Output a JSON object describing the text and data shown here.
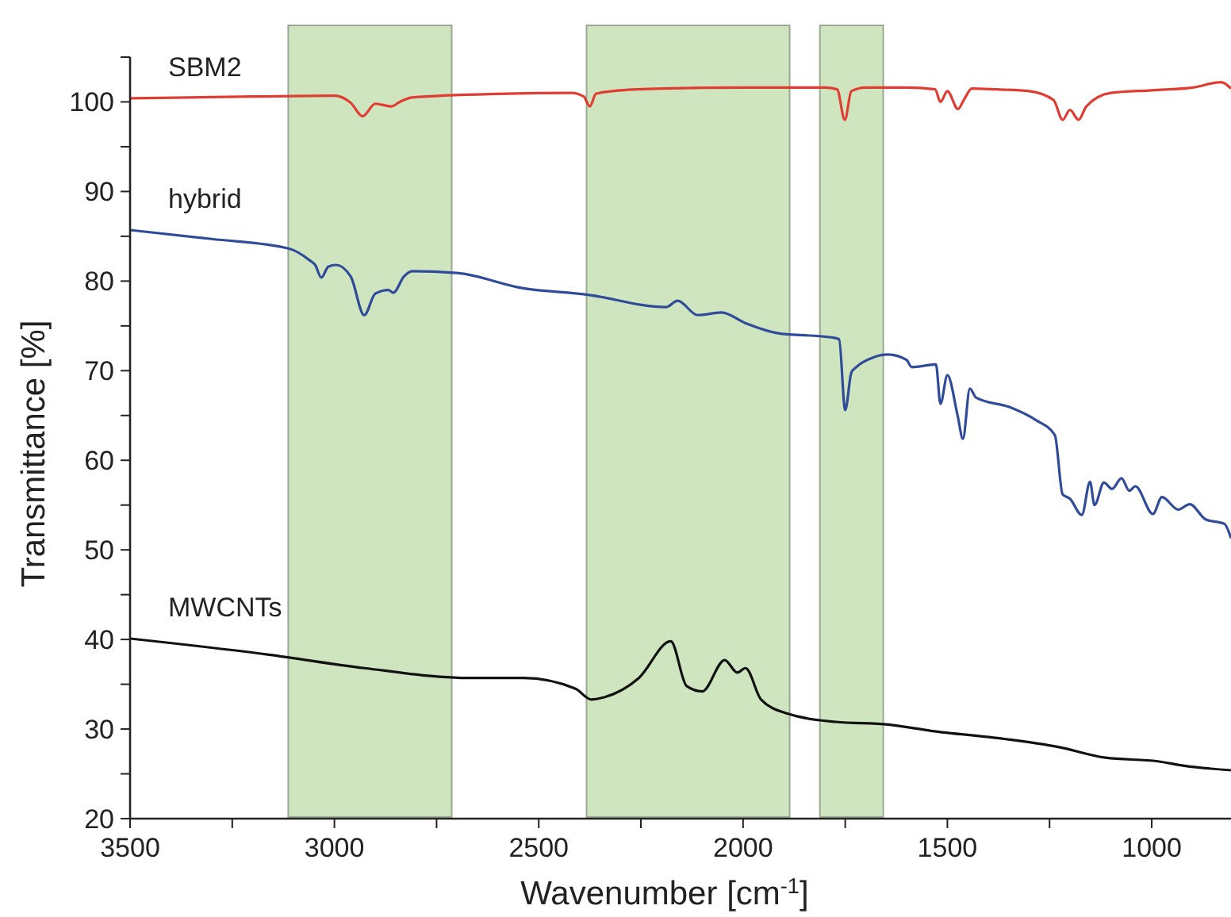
{
  "chart_data": {
    "type": "line",
    "xlabel": "Wavenumber [cm$^{-1}$]",
    "ylabel": "Transmittance [%]",
    "xlim": [
      3500,
      806
    ],
    "ylim": [
      20,
      105
    ],
    "xticks": [
      3500,
      {
        "value": 3250,
        "label": null
      },
      3000,
      {
        "value": 2750,
        "label": null
      },
      2500,
      {
        "value": 2250,
        "label": null
      },
      2000,
      {
        "value": 1750,
        "label": null
      },
      1500,
      {
        "value": 1250,
        "label": null
      },
      1000
    ],
    "yticks": [
      20,
      {
        "value": 25,
        "label": null
      },
      30,
      {
        "value": 35,
        "label": null
      },
      40,
      {
        "value": 45,
        "label": null
      },
      50,
      {
        "value": 55,
        "label": null
      },
      60,
      {
        "value": 65,
        "label": null
      },
      70,
      {
        "value": 75,
        "label": null
      },
      80,
      {
        "value": 85,
        "label": null
      },
      90,
      {
        "value": 95,
        "label": null
      },
      100,
      {
        "value": 105,
        "label": null
      }
    ],
    "grid": false,
    "line_style": "solid",
    "marker": "none",
    "bands": [
      {
        "axis": "x",
        "from": 3113,
        "to": 2713,
        "color": "#c5e0b4"
      },
      {
        "axis": "x",
        "from": 2383,
        "to": 1886,
        "color": "#c5e0b4"
      },
      {
        "axis": "x",
        "from": 1812,
        "to": 1657,
        "color": "#c5e0b4"
      }
    ],
    "series": [
      {
        "name": "SBM2",
        "color": "#e03c31",
        "x": [
          3500,
          3200,
          3000,
          2960,
          2931,
          2900,
          2861,
          2840,
          2810,
          2600,
          2420,
          2390,
          2375,
          2360,
          2300,
          2200,
          2000,
          1800,
          1770,
          1751,
          1735,
          1700,
          1600,
          1530,
          1517,
          1500,
          1474,
          1460,
          1440,
          1380,
          1300,
          1240,
          1218,
          1200,
          1179,
          1160,
          1100,
          1000,
          900,
          830,
          806
        ],
        "values": [
          100.4,
          100.6,
          100.7,
          99.9,
          98.4,
          99.8,
          99.5,
          100,
          100.5,
          100.9,
          101,
          100.6,
          99.5,
          100.9,
          101.3,
          101.5,
          101.6,
          101.6,
          101.4,
          98,
          101.2,
          101.6,
          101.6,
          101.4,
          100,
          101.2,
          99.2,
          100.2,
          101.5,
          101.4,
          101.2,
          100.2,
          98,
          99.1,
          98,
          99.5,
          101,
          101.3,
          101.6,
          102.2,
          101.5
        ]
      },
      {
        "name": "hybrid",
        "color": "#2f4b9a",
        "x": [
          3500,
          3300,
          3109,
          3060,
          3047,
          3032,
          3015,
          2996,
          2960,
          2927,
          2900,
          2868,
          2856,
          2830,
          2810,
          2700,
          2538,
          2383,
          2189,
          2160,
          2111,
          2053,
          1994,
          1917,
          1781,
          1765,
          1750,
          1735,
          1723,
          1680,
          1645,
          1600,
          1587,
          1528,
          1517,
          1500,
          1475,
          1462,
          1445,
          1430,
          1346,
          1284,
          1237,
          1218,
          1200,
          1171,
          1151,
          1140,
          1117,
          1097,
          1074,
          1055,
          1040,
          997,
          975,
          935,
          907,
          868,
          822,
          806
        ],
        "values": [
          85.7,
          84.7,
          83.6,
          82.3,
          81.8,
          80.4,
          81.6,
          81.8,
          80.5,
          76.2,
          78.6,
          79,
          78.7,
          80.5,
          81.1,
          80.9,
          79.2,
          78.5,
          77.1,
          77.8,
          76.2,
          76.5,
          75.3,
          74.2,
          73.7,
          73.5,
          65.6,
          69.8,
          70.4,
          71.5,
          71.8,
          71.2,
          70.4,
          70.7,
          66.3,
          69.5,
          65,
          62.4,
          68,
          67,
          65.9,
          64.5,
          62.8,
          56.2,
          55.7,
          53.9,
          57.6,
          55,
          57.5,
          56.8,
          58,
          56.6,
          57.1,
          54,
          55.9,
          54.5,
          55.1,
          53.4,
          52.9,
          51.3
        ]
      },
      {
        "name": "MWCNTs",
        "color": "#111111",
        "x": [
          3500,
          3160,
          2927,
          2667,
          2538,
          2410,
          2372,
          2344,
          2255,
          2177,
          2138,
          2100,
          2045,
          2014,
          1994,
          1956,
          1890,
          1773,
          1645,
          1540,
          1361,
          1229,
          1113,
          985,
          920,
          806
        ],
        "values": [
          40.1,
          38.3,
          36.8,
          35.7,
          35.7,
          34.5,
          33.3,
          33.5,
          35.7,
          39.8,
          34.8,
          34.2,
          37.7,
          36.3,
          36.8,
          33.3,
          31.7,
          30.8,
          30.5,
          29.8,
          28.9,
          28,
          26.8,
          26.4,
          25.9,
          25.4
        ]
      }
    ]
  }
}
